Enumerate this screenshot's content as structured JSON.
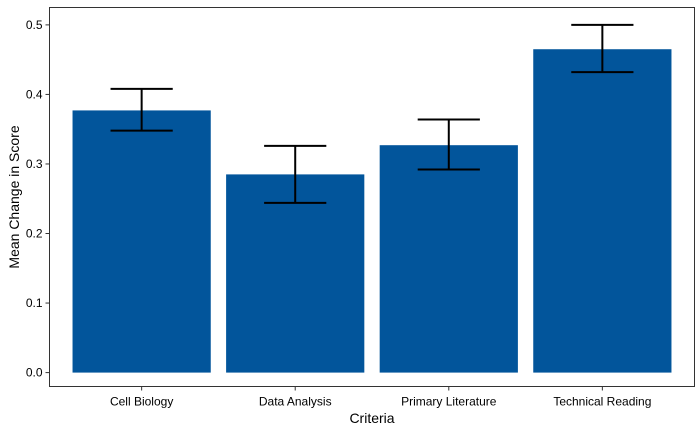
{
  "chart_data": {
    "type": "bar",
    "title": "",
    "xlabel": "Criteria",
    "ylabel": "Mean Change in Score",
    "categories": [
      "Cell Biology",
      "Data Analysis",
      "Primary Literature",
      "Technical Reading"
    ],
    "values": [
      0.377,
      0.285,
      0.327,
      0.465
    ],
    "error_low": [
      0.348,
      0.244,
      0.292,
      0.432
    ],
    "error_high": [
      0.408,
      0.326,
      0.364,
      0.5
    ],
    "ylim": [
      -0.02,
      0.525
    ],
    "yticks": [
      0.0,
      0.1,
      0.2,
      0.3,
      0.4,
      0.5
    ],
    "ytick_labels": [
      "0.0",
      "0.1",
      "0.2",
      "0.3",
      "0.4",
      "0.5"
    ],
    "grid": false,
    "bar_color": "#02559B",
    "error_color": "#000000"
  }
}
